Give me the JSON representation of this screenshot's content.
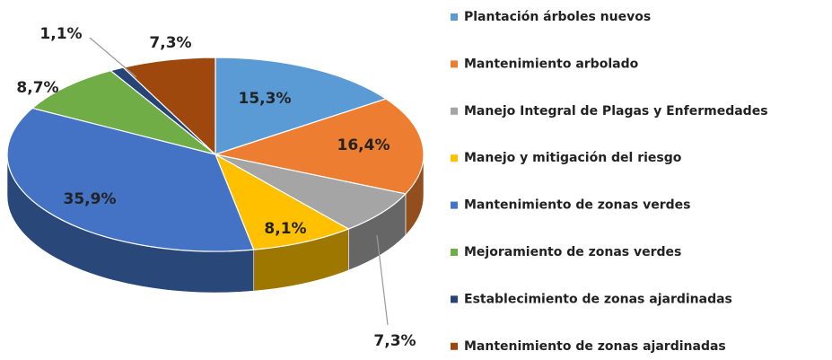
{
  "chart_data": {
    "type": "pie3d",
    "categories": [
      "Plantación árboles nuevos",
      "Mantenimiento arbolado",
      "Manejo Integral de Plagas y Enfermedades",
      "Manejo y mitigación del riesgo",
      "Mantenimiento de zonas verdes",
      "Mejoramiento de zonas verdes",
      "Establecimiento de zonas ajardinadas",
      "Mantenimiento de zonas ajardinadas"
    ],
    "values": [
      15.3,
      16.4,
      7.3,
      8.1,
      35.9,
      8.7,
      1.1,
      7.3
    ],
    "value_labels": [
      "15,3%",
      "16,4%",
      "7,3%",
      "8,1%",
      "35,9%",
      "8,7%",
      "1,1%",
      "7,3%"
    ],
    "colors": [
      "#5b9bd5",
      "#ed7d31",
      "#a5a5a5",
      "#ffc000",
      "#4472c4",
      "#70ad47",
      "#264478",
      "#9e480e"
    ],
    "legend": "right"
  }
}
